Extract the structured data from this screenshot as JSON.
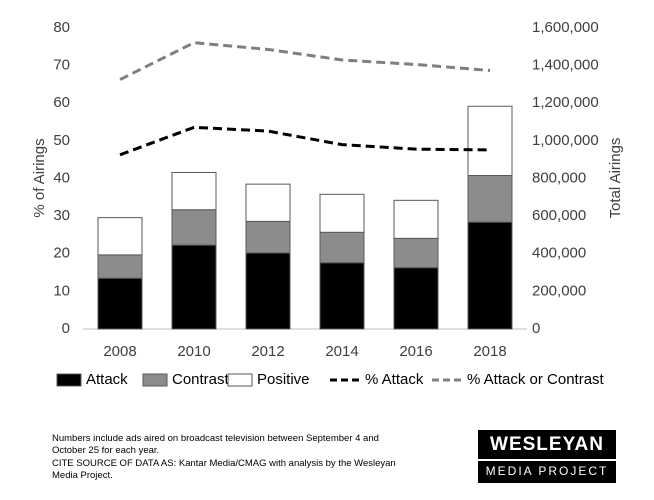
{
  "chart_data": {
    "type": "bar",
    "y_label": "% of Airings",
    "y2_label": "Total Airings",
    "categories": [
      "2008",
      "2010",
      "2012",
      "2014",
      "2016",
      "2018"
    ],
    "ylim": [
      0,
      80
    ],
    "yticks": [
      0,
      10,
      20,
      30,
      40,
      50,
      60,
      70,
      80
    ],
    "y2lim": [
      0,
      1600000
    ],
    "y2ticks": [
      0,
      {
        "value": 200000,
        "label": "200,000"
      },
      {
        "value": 400000,
        "label": "400,000"
      },
      {
        "value": 600000,
        "label": "600,000"
      },
      {
        "value": 800000,
        "label": "800,000"
      },
      {
        "value": 1000000,
        "label": "1,000,000"
      },
      {
        "value": 1200000,
        "label": "1,200,000"
      },
      {
        "value": 1400000,
        "label": "1,400,000"
      },
      {
        "value": 1600000,
        "label": "1,600,000"
      }
    ],
    "grid": false,
    "stacked": true,
    "series": [
      {
        "name": "Attack",
        "type": "bar",
        "axis": "y2",
        "color": "#000000",
        "values": [
          270000,
          446000,
          404000,
          352000,
          326000,
          568000
        ]
      },
      {
        "name": "Contrast",
        "type": "bar",
        "axis": "y2",
        "color": "#8c8c8c",
        "values": [
          124000,
          188000,
          168000,
          162000,
          156000,
          248000
        ]
      },
      {
        "name": "Positive",
        "type": "bar",
        "axis": "y2",
        "color": "#ffffff",
        "values": [
          198000,
          198000,
          198000,
          202000,
          202000,
          368000
        ]
      },
      {
        "name": "% Attack",
        "type": "line",
        "color": "#000000",
        "values": [
          46.3,
          53.6,
          52.6,
          49,
          47.8,
          47.6
        ]
      },
      {
        "name": "% Attack or Contrast",
        "type": "line",
        "color": "#7f7f7f",
        "values": [
          66.3,
          76.1,
          74.3,
          71.5,
          70.3,
          68.7
        ]
      }
    ]
  },
  "footnote": [
    "Numbers  include ads aired on broadcast television between September  4 and",
    "October 25 for each year.",
    "CITE SOURCE OF DATA AS: Kantar Media/CMAG with analysis by the Wesleyan",
    "Media Project."
  ],
  "logo": {
    "top": "WESLEYAN",
    "bottom": "MEDIA PROJECT"
  }
}
